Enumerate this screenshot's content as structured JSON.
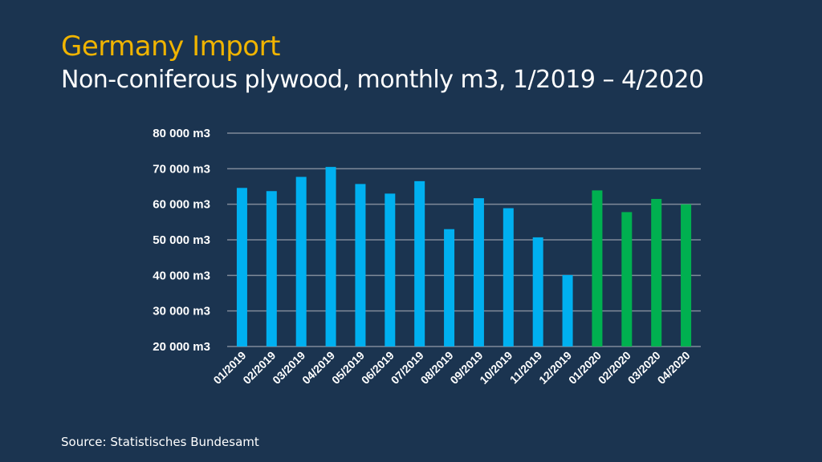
{
  "chart_data": {
    "type": "bar",
    "title": "Germany Import",
    "subtitle": "Non-coniferous plywood, monthly m3, 1/2019 – 4/2020",
    "xlabel": "",
    "ylabel": "",
    "ylim": [
      20000,
      80000
    ],
    "yticks": [
      20000,
      30000,
      40000,
      50000,
      60000,
      70000,
      80000
    ],
    "ytick_labels": [
      "20 000 m3",
      "30 000 m3",
      "40 000 m3",
      "50 000 m3",
      "60 000 m3",
      "70 000 m3",
      "80 000 m3"
    ],
    "grid": true,
    "categories": [
      "01/2019",
      "02/2019",
      "03/2019",
      "04/2019",
      "05/2019",
      "06/2019",
      "07/2019",
      "08/2019",
      "09/2019",
      "10/2019",
      "11/2019",
      "12/2019",
      "01/2020",
      "02/2020",
      "03/2020",
      "04/2020"
    ],
    "values": [
      64600,
      63700,
      67700,
      70500,
      65700,
      63000,
      66500,
      53000,
      61700,
      58900,
      50700,
      40100,
      63900,
      57800,
      61500,
      60000
    ],
    "colors": [
      "#00b0f0",
      "#00b0f0",
      "#00b0f0",
      "#00b0f0",
      "#00b0f0",
      "#00b0f0",
      "#00b0f0",
      "#00b0f0",
      "#00b0f0",
      "#00b0f0",
      "#00b0f0",
      "#00b0f0",
      "#00b050",
      "#00b050",
      "#00b050",
      "#00b050"
    ]
  },
  "source": "Source: Statistisches Bundesamt",
  "colors": {
    "background": "#1b3450",
    "title": "#f0b400",
    "grid": "#7f8a99"
  }
}
